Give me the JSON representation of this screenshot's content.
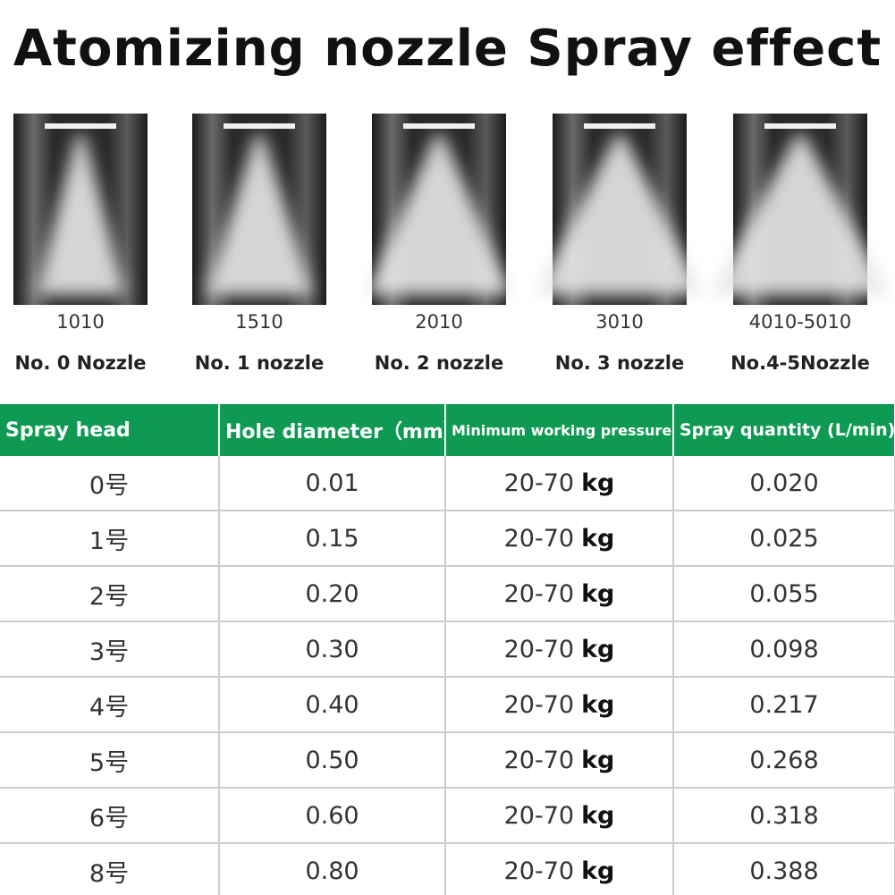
{
  "header": {
    "title": "Atomizing nozzle Spray effect"
  },
  "nozzles": [
    {
      "code": "1010",
      "label": "No. 0 Nozzle"
    },
    {
      "code": "1510",
      "label": "No. 1 nozzle"
    },
    {
      "code": "2010",
      "label": "No. 2 nozzle"
    },
    {
      "code": "3010",
      "label": "No. 3 nozzle"
    },
    {
      "code": "4010-5010",
      "label": "No.4-5Nozzle"
    }
  ],
  "table": {
    "columns": [
      "Spray head",
      "Hole diameter（mm）",
      "Minimum working pressure",
      "Spray quantity (L/min)"
    ],
    "rows": [
      {
        "head": "0号",
        "diameter": "0.01",
        "pressure": "20-70",
        "unit": "kg",
        "quantity": "0.020"
      },
      {
        "head": "1号",
        "diameter": "0.15",
        "pressure": "20-70",
        "unit": "kg",
        "quantity": "0.025"
      },
      {
        "head": "2号",
        "diameter": "0.20",
        "pressure": "20-70",
        "unit": "kg",
        "quantity": "0.055"
      },
      {
        "head": "3号",
        "diameter": "0.30",
        "pressure": "20-70",
        "unit": "kg",
        "quantity": "0.098"
      },
      {
        "head": "4号",
        "diameter": "0.40",
        "pressure": "20-70",
        "unit": "kg",
        "quantity": "0.217"
      },
      {
        "head": "5号",
        "diameter": "0.50",
        "pressure": "20-70",
        "unit": "kg",
        "quantity": "0.268"
      },
      {
        "head": "6号",
        "diameter": "0.60",
        "pressure": "20-70",
        "unit": "kg",
        "quantity": "0.318"
      },
      {
        "head": "8号",
        "diameter": "0.80",
        "pressure": "20-70",
        "unit": "kg",
        "quantity": "0.388"
      }
    ]
  }
}
